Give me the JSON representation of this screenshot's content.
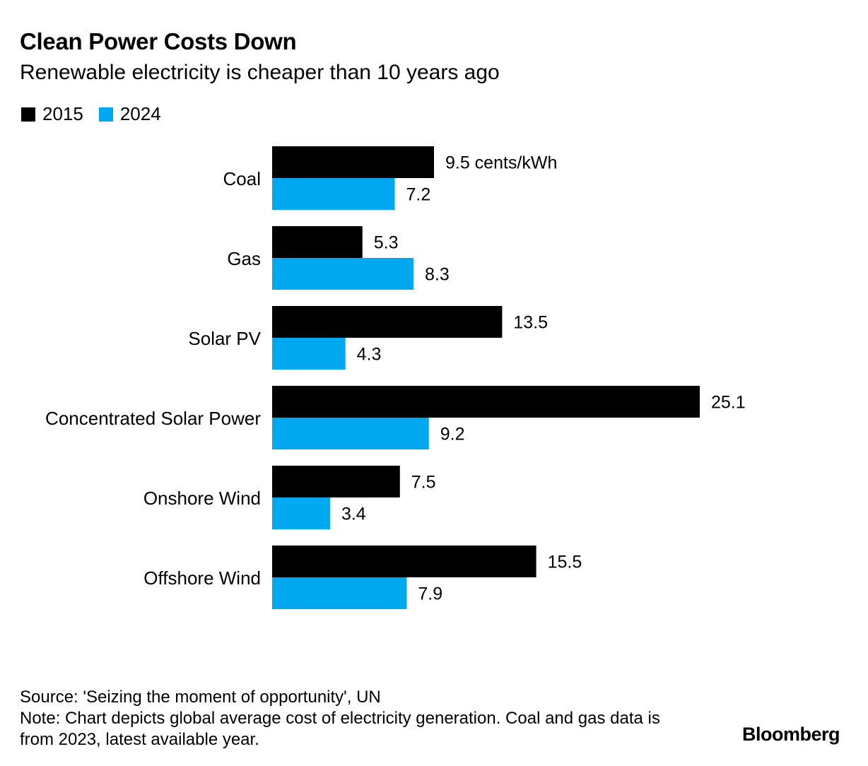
{
  "header": {
    "title": "Clean Power Costs Down",
    "subtitle": "Renewable electricity is cheaper than 10 years ago"
  },
  "footer": {
    "source": "Source: 'Seizing the moment of opportunity', UN",
    "note": "Note: Chart depicts global average cost of electricity generation. Coal and gas data is from 2023, latest available year.",
    "brand": "Bloomberg"
  },
  "chart_data": {
    "type": "bar",
    "orientation": "horizontal",
    "title": "Clean Power Costs Down",
    "subtitle": "Renewable electricity is cheaper than 10 years ago",
    "unit": "cents/kWh",
    "categories": [
      "Coal",
      "Gas",
      "Solar PV",
      "Concentrated Solar Power",
      "Onshore Wind",
      "Offshore Wind"
    ],
    "series": [
      {
        "name": "2015",
        "color": "#000000",
        "values": [
          9.5,
          5.3,
          13.5,
          25.1,
          7.5,
          15.5
        ]
      },
      {
        "name": "2024",
        "color": "#00a8f0",
        "values": [
          7.2,
          8.3,
          4.3,
          9.2,
          3.4,
          7.9
        ]
      }
    ],
    "value_labels": [
      [
        "9.5 cents/kWh",
        "5.3",
        "13.5",
        "25.1",
        "7.5",
        "15.5"
      ],
      [
        "7.2",
        "8.3",
        "4.3",
        "9.2",
        "3.4",
        "7.9"
      ]
    ],
    "xlim": [
      0,
      25.1
    ],
    "grid": false,
    "legend_position": "top-left"
  }
}
